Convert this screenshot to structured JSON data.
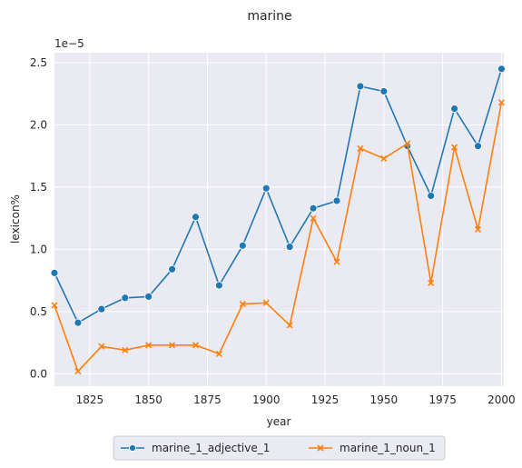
{
  "chart_data": {
    "type": "line",
    "title": "marine",
    "xlabel": "year",
    "ylabel": "lexicon%",
    "y_offset_label": "1e−5",
    "xlim": [
      1810,
      2001
    ],
    "ylim": [
      -0.1,
      2.58
    ],
    "x_ticks": [
      1825,
      1850,
      1875,
      1900,
      1925,
      1950,
      1975,
      2000
    ],
    "y_ticks": [
      0.0,
      0.5,
      1.0,
      1.5,
      2.0,
      2.5
    ],
    "grid": true,
    "legend_placement": "bottom-center",
    "x": [
      1810,
      1820,
      1830,
      1840,
      1850,
      1860,
      1870,
      1880,
      1890,
      1900,
      1910,
      1920,
      1930,
      1940,
      1950,
      1960,
      1970,
      1980,
      1990,
      2000
    ],
    "series": [
      {
        "name": "marine_1_adjective_1",
        "color": "#1f77b4",
        "marker": "circle",
        "values": [
          0.81,
          0.41,
          0.52,
          0.61,
          0.62,
          0.84,
          1.26,
          0.71,
          1.03,
          1.49,
          1.02,
          1.33,
          1.39,
          2.31,
          2.27,
          1.83,
          1.43,
          2.13,
          1.83,
          2.45
        ]
      },
      {
        "name": "marine_1_noun_1",
        "color": "#ff7f0e",
        "marker": "x",
        "values": [
          0.55,
          0.02,
          0.22,
          0.19,
          0.23,
          0.23,
          0.23,
          0.16,
          0.56,
          0.57,
          0.39,
          1.25,
          0.9,
          1.81,
          1.73,
          1.85,
          0.73,
          1.82,
          1.16,
          2.18
        ]
      }
    ]
  }
}
